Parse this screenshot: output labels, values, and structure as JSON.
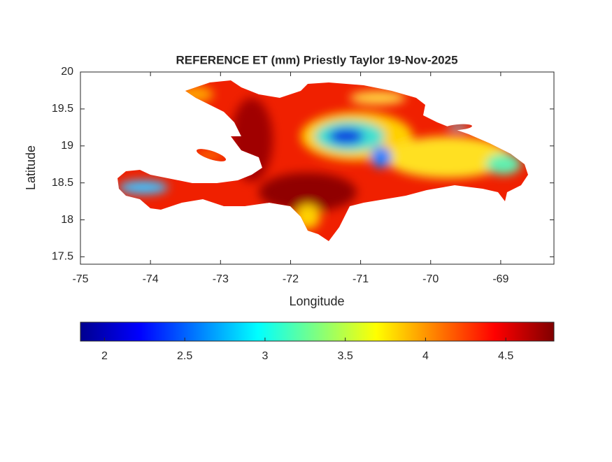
{
  "chart_data": {
    "type": "map",
    "title": "REFERENCE ET (mm) Priestly Taylor 19-Nov-2025",
    "x_label": "Longitude",
    "y_label": "Latitude",
    "xlim": [
      -75,
      -68.24
    ],
    "xticks": [
      -75,
      -74,
      -73,
      -72,
      -71,
      -70,
      -69
    ],
    "ylim": [
      17.4,
      20
    ],
    "yticks": [
      17.5,
      18,
      18.5,
      19,
      19.5,
      20
    ],
    "colormap": "jet",
    "clim": [
      1.85,
      4.8
    ],
    "colorbar_ticks": [
      2,
      2.5,
      3,
      3.5,
      4,
      4.5
    ]
  }
}
